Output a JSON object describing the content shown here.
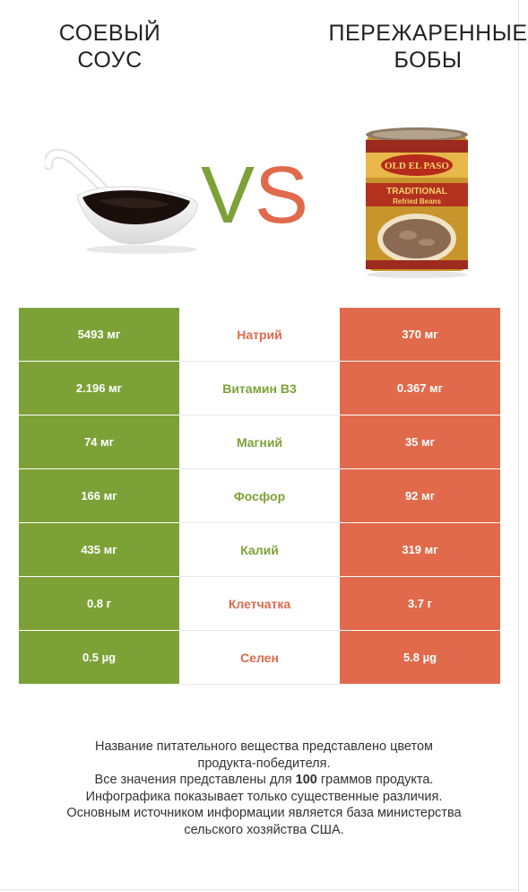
{
  "left_product": {
    "name_line1": "СОЕВЫЙ",
    "name_line2": "СОУС",
    "color": "#7ca237"
  },
  "right_product": {
    "name_line1": "ПЕРЕЖАРЕННЫЕ",
    "name_line2": "БОБЫ",
    "color": "#e06a4b"
  },
  "vs": {
    "v": "V",
    "s": "S"
  },
  "can_label": {
    "brand": "OLD EL PASO",
    "line1": "TRADITIONAL",
    "line2": "Refried Beans"
  },
  "rows": [
    {
      "left": "5493 мг",
      "nutrient": "Натрий",
      "right": "370 мг",
      "winner": "right"
    },
    {
      "left": "2.196 мг",
      "nutrient": "Витамин B3",
      "right": "0.367 мг",
      "winner": "left"
    },
    {
      "left": "74 мг",
      "nutrient": "Магний",
      "right": "35 мг",
      "winner": "left"
    },
    {
      "left": "166 мг",
      "nutrient": "Фосфор",
      "right": "92 мг",
      "winner": "left"
    },
    {
      "left": "435 мг",
      "nutrient": "Калий",
      "right": "319 мг",
      "winner": "left"
    },
    {
      "left": "0.8 г",
      "nutrient": "Клетчатка",
      "right": "3.7 г",
      "winner": "right"
    },
    {
      "left": "0.5 µg",
      "nutrient": "Селен",
      "right": "5.8 µg",
      "winner": "right"
    }
  ],
  "footer": {
    "line1": "Название питательного вещества представлено цветом",
    "line2": "продукта-победителя.",
    "line3_pre": "Все значения представлены для ",
    "line3_bold": "100",
    "line3_post": " граммов продукта.",
    "line4": "Инфографика показывает только существенные различия.",
    "line5": "Основным источником информации является база министерства",
    "line6": "сельского хозяйства США."
  }
}
